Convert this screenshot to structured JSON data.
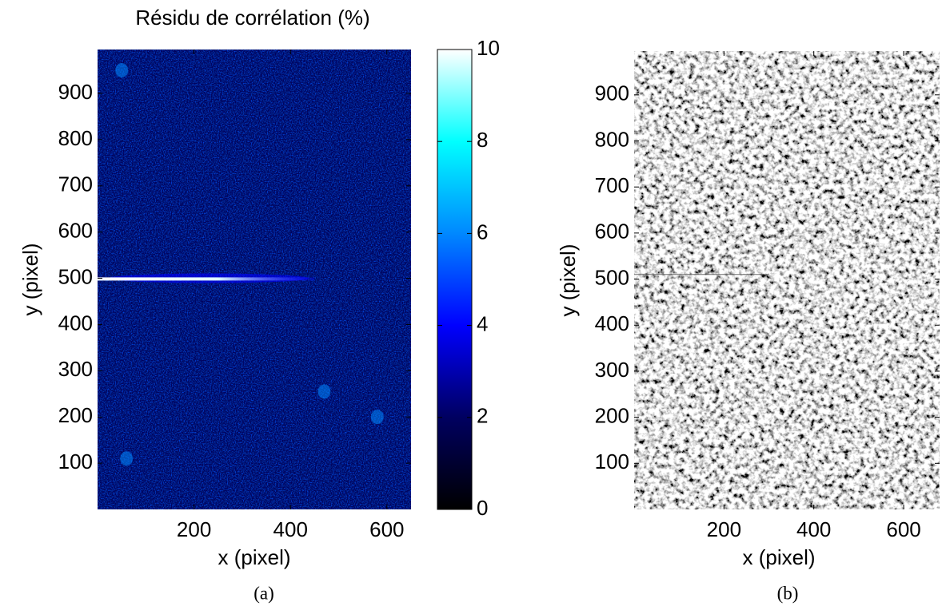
{
  "chart_data": [
    {
      "type": "heatmap",
      "title": "Résidu de corrélation (%)",
      "xlabel": "x (pixel)",
      "ylabel": "y (pixel)",
      "caption": "(a)",
      "xlim": [
        0,
        650
      ],
      "ylim": [
        0,
        995
      ],
      "xticks": [
        200,
        400,
        600
      ],
      "yticks": [
        100,
        200,
        300,
        400,
        500,
        600,
        700,
        800,
        900
      ],
      "colorbar": {
        "lim": [
          0,
          10
        ],
        "ticks": [
          0,
          2,
          4,
          6,
          8,
          10
        ]
      },
      "colormap": [
        "#000000",
        "#000060",
        "#0000ff",
        "#0088ff",
        "#00ffff",
        "#ffffff"
      ]
    },
    {
      "type": "image",
      "xlabel": "x (pixel)",
      "ylabel": "y (pixel)",
      "caption": "(b)",
      "xlim": [
        0,
        680
      ],
      "ylim": [
        0,
        995
      ],
      "xticks": [
        200,
        400,
        600
      ],
      "yticks": [
        100,
        200,
        300,
        400,
        500,
        600,
        700,
        800,
        900
      ]
    }
  ]
}
